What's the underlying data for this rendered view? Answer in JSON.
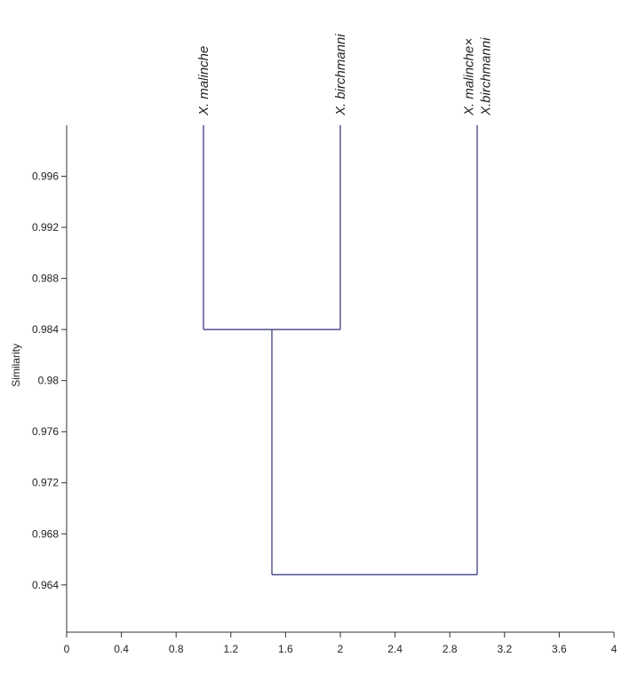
{
  "chart_data": {
    "type": "dendrogram",
    "title": "",
    "xlabel": "",
    "ylabel": "Similarity",
    "xlim": [
      0,
      4
    ],
    "ylim": [
      0.9603,
      1.0
    ],
    "x_ticks": [
      "0",
      "0.4",
      "0.8",
      "1.2",
      "1.6",
      "2",
      "2.4",
      "2.8",
      "3.2",
      "3.6",
      "4"
    ],
    "y_ticks": [
      "0.964",
      "0.968",
      "0.972",
      "0.976",
      "0.98",
      "0.984",
      "0.988",
      "0.992",
      "0.996"
    ],
    "leaves": [
      {
        "x": 1,
        "label_lines": [
          "X. malinche"
        ]
      },
      {
        "x": 2,
        "label_lines": [
          "X. birchmanni"
        ]
      },
      {
        "x": 3,
        "label_lines": [
          "X. malinche×",
          "X.birchmanni"
        ]
      }
    ],
    "merges": [
      {
        "left_x": 1,
        "right_x": 2,
        "similarity": 0.984,
        "children": [
          "X. malinche",
          "X. birchmanni"
        ]
      },
      {
        "left_x": 1.5,
        "right_x": 3,
        "similarity": 0.9648,
        "children": [
          "X. malinche + X. birchmanni",
          "X. malinche× X.birchmanni"
        ]
      }
    ],
    "line_color": "#2e2e7a",
    "axis_color": "#333333",
    "grid": false
  }
}
